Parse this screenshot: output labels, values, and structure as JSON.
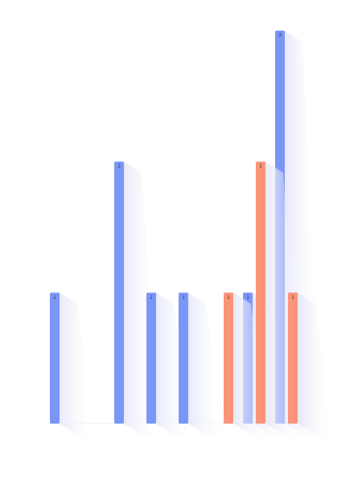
{
  "chart_data": {
    "type": "bar",
    "categories": [
      null,
      null,
      null,
      null,
      null,
      null,
      null,
      null
    ],
    "series": [
      {
        "color": "#7b96f9",
        "values": [
          1,
          null,
          2,
          1,
          1,
          null,
          1,
          3
        ]
      },
      {
        "color": "#fb9478",
        "values": [
          null,
          null,
          null,
          null,
          null,
          1,
          2,
          1
        ]
      }
    ],
    "ylim": [
      0,
      3
    ]
  }
}
